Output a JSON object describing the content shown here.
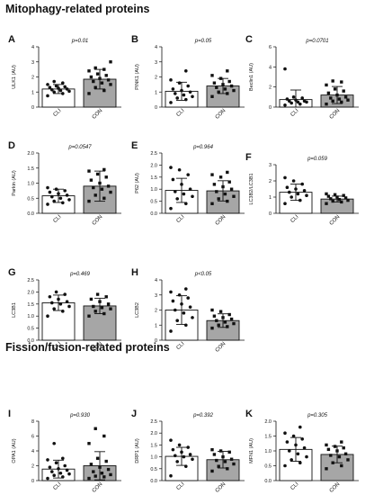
{
  "sections": [
    {
      "title": "Mitophagy-related proteins"
    },
    {
      "title": "Fission/fusion-related proteins"
    }
  ],
  "colors": {
    "cli_bar": "#ffffff",
    "con_bar": "#a6a6a6",
    "axis": "#111111"
  },
  "chart_data": [
    {
      "type": "bar",
      "panel": "A",
      "ylabel": "ULK1 (AU)",
      "pvalue": "p=0.01",
      "categories": [
        "CLI",
        "CON"
      ],
      "ylim": [
        0,
        4
      ],
      "yticks": [
        0,
        1,
        2,
        3,
        4
      ],
      "means": [
        1.2,
        1.85
      ],
      "sd": [
        0.3,
        0.65
      ],
      "points": [
        [
          0.75,
          0.9,
          1.0,
          1.05,
          1.1,
          1.15,
          1.2,
          1.25,
          1.3,
          1.35,
          1.4,
          1.5,
          1.6,
          1.7
        ],
        [
          0.9,
          1.1,
          1.3,
          1.5,
          1.6,
          1.7,
          1.8,
          1.9,
          2.0,
          2.1,
          2.2,
          2.4,
          2.5,
          2.6,
          3.0
        ]
      ]
    },
    {
      "type": "bar",
      "panel": "B",
      "ylabel": "PINK1 (AU)",
      "pvalue": "p=0.05",
      "categories": [
        "CLI",
        "CON"
      ],
      "ylim": [
        0,
        4
      ],
      "yticks": [
        0,
        1,
        2,
        3,
        4
      ],
      "means": [
        1.05,
        1.4
      ],
      "sd": [
        0.6,
        0.5
      ],
      "points": [
        [
          0.3,
          0.5,
          0.6,
          0.7,
          0.8,
          0.9,
          1.0,
          1.1,
          1.2,
          1.4,
          1.6,
          1.8,
          2.4
        ],
        [
          0.7,
          0.9,
          1.0,
          1.1,
          1.2,
          1.3,
          1.4,
          1.5,
          1.6,
          1.7,
          1.9,
          2.1,
          2.4
        ]
      ]
    },
    {
      "type": "bar",
      "panel": "C",
      "ylabel": "Beclin1 (AU)",
      "pvalue": "p=0.0701",
      "categories": [
        "CLI",
        "CON"
      ],
      "ylim": [
        0,
        6
      ],
      "yticks": [
        0,
        2,
        4,
        6
      ],
      "means": [
        0.75,
        1.2
      ],
      "sd": [
        0.95,
        0.85
      ],
      "points": [
        [
          0.2,
          0.3,
          0.4,
          0.5,
          0.5,
          0.6,
          0.6,
          0.7,
          0.8,
          0.9,
          1.0,
          3.8
        ],
        [
          0.3,
          0.5,
          0.6,
          0.7,
          0.8,
          0.9,
          1.0,
          1.2,
          1.4,
          1.6,
          1.8,
          2.2,
          2.5,
          2.6
        ]
      ]
    },
    {
      "type": "bar",
      "panel": "D",
      "ylabel": "Parkin (AU)",
      "pvalue": "p=0.0547",
      "categories": [
        "CLI",
        "CON"
      ],
      "ylim": [
        0,
        2.0
      ],
      "yticks": [
        0.0,
        0.5,
        1.0,
        1.5,
        2.0
      ],
      "means": [
        0.58,
        0.9
      ],
      "sd": [
        0.22,
        0.5
      ],
      "points": [
        [
          0.3,
          0.35,
          0.4,
          0.45,
          0.5,
          0.55,
          0.6,
          0.65,
          0.7,
          0.75,
          0.8,
          0.85
        ],
        [
          0.4,
          0.5,
          0.6,
          0.7,
          0.8,
          0.85,
          0.9,
          1.0,
          1.1,
          1.2,
          1.3,
          1.4,
          1.45
        ]
      ]
    },
    {
      "type": "bar",
      "panel": "E",
      "ylabel": "P62 (AU)",
      "pvalue": "p=0.964",
      "categories": [
        "CLI",
        "CON"
      ],
      "ylim": [
        0,
        2.5
      ],
      "yticks": [
        0.0,
        0.5,
        1.0,
        1.5,
        2.0,
        2.5
      ],
      "means": [
        0.95,
        0.93
      ],
      "sd": [
        0.5,
        0.42
      ],
      "points": [
        [
          0.2,
          0.4,
          0.6,
          0.7,
          0.8,
          0.9,
          1.0,
          1.2,
          1.4,
          1.6,
          1.8,
          1.9
        ],
        [
          0.4,
          0.5,
          0.6,
          0.7,
          0.8,
          0.9,
          1.0,
          1.1,
          1.2,
          1.3,
          1.5,
          1.6,
          1.7
        ]
      ]
    },
    {
      "type": "bar",
      "panel": "F",
      "ylabel": "LC3B2/LC3B1",
      "pvalue": "p=0.059",
      "categories": [
        "CLI",
        "CON"
      ],
      "ylim": [
        0,
        3
      ],
      "yticks": [
        0,
        1,
        2,
        3
      ],
      "means": [
        1.3,
        0.88
      ],
      "sd": [
        0.5,
        0.18
      ],
      "points": [
        [
          0.6,
          0.8,
          1.0,
          1.1,
          1.2,
          1.3,
          1.4,
          1.5,
          1.6,
          1.8,
          2.0,
          2.2
        ],
        [
          0.6,
          0.7,
          0.75,
          0.8,
          0.85,
          0.9,
          0.95,
          1.0,
          1.05,
          1.1,
          1.15,
          1.2
        ]
      ]
    },
    {
      "type": "bar",
      "panel": "G",
      "ylabel": "LC3B1",
      "pvalue": "p=0.469",
      "categories": [
        "CLI",
        "CON"
      ],
      "ylim": [
        0,
        2.5
      ],
      "yticks": [
        0.0,
        0.5,
        1.0,
        1.5,
        2.0,
        2.5
      ],
      "means": [
        1.55,
        1.42
      ],
      "sd": [
        0.32,
        0.32
      ],
      "points": [
        [
          1.0,
          1.2,
          1.3,
          1.4,
          1.5,
          1.55,
          1.6,
          1.7,
          1.8,
          1.9,
          2.0
        ],
        [
          1.0,
          1.1,
          1.2,
          1.3,
          1.35,
          1.4,
          1.5,
          1.6,
          1.7,
          1.8,
          1.9
        ]
      ]
    },
    {
      "type": "bar",
      "panel": "H",
      "ylabel": "LC3B2",
      "pvalue": "p<0.05",
      "categories": [
        "CLI",
        "CON"
      ],
      "ylim": [
        0,
        4
      ],
      "yticks": [
        0,
        1,
        2,
        3,
        4
      ],
      "means": [
        2.0,
        1.3
      ],
      "sd": [
        0.95,
        0.45
      ],
      "points": [
        [
          0.6,
          1.0,
          1.3,
          1.5,
          1.8,
          2.0,
          2.2,
          2.4,
          2.6,
          2.8,
          3.0,
          3.2,
          3.4
        ],
        [
          0.8,
          0.9,
          1.0,
          1.1,
          1.2,
          1.3,
          1.4,
          1.5,
          1.6,
          1.7,
          1.9,
          2.0
        ]
      ]
    },
    {
      "type": "bar",
      "panel": "I",
      "ylabel": "OPA1 (AU)",
      "pvalue": "p=0.930",
      "categories": [
        "CLI",
        "CON"
      ],
      "ylim": [
        0,
        8
      ],
      "yticks": [
        0,
        2,
        4,
        6,
        8
      ],
      "means": [
        1.55,
        2.0
      ],
      "sd": [
        1.2,
        1.9
      ],
      "points": [
        [
          0.3,
          0.5,
          0.7,
          0.9,
          1.0,
          1.2,
          1.4,
          1.6,
          1.8,
          2.0,
          2.4,
          2.8,
          3.0,
          5.0
        ],
        [
          0.3,
          0.5,
          0.6,
          0.8,
          1.0,
          1.2,
          1.5,
          1.8,
          2.2,
          2.6,
          3.0,
          5.0,
          6.0,
          7.0
        ]
      ]
    },
    {
      "type": "bar",
      "panel": "J",
      "ylabel": "DRP1 (AU)",
      "pvalue": "p=0.392",
      "categories": [
        "CLI",
        "CON"
      ],
      "ylim": [
        0,
        2.5
      ],
      "yticks": [
        0.0,
        0.5,
        1.0,
        1.5,
        2.0,
        2.5
      ],
      "means": [
        1.02,
        0.88
      ],
      "sd": [
        0.38,
        0.35
      ],
      "points": [
        [
          0.2,
          0.6,
          0.8,
          0.9,
          1.0,
          1.05,
          1.1,
          1.2,
          1.3,
          1.4,
          1.5,
          1.7
        ],
        [
          0.4,
          0.5,
          0.6,
          0.7,
          0.8,
          0.85,
          0.9,
          1.0,
          1.1,
          1.2,
          1.25,
          1.3
        ]
      ]
    },
    {
      "type": "bar",
      "panel": "K",
      "ylabel": "MFN1 (AU)",
      "pvalue": "p=0.305",
      "categories": [
        "CLI",
        "CON"
      ],
      "ylim": [
        0,
        2.0
      ],
      "yticks": [
        0.0,
        0.5,
        1.0,
        1.5,
        2.0
      ],
      "means": [
        1.05,
        0.88
      ],
      "sd": [
        0.4,
        0.28
      ],
      "points": [
        [
          0.5,
          0.6,
          0.7,
          0.8,
          0.9,
          1.0,
          1.1,
          1.2,
          1.3,
          1.4,
          1.5,
          1.6,
          1.8
        ],
        [
          0.4,
          0.5,
          0.6,
          0.7,
          0.8,
          0.85,
          0.9,
          1.0,
          1.05,
          1.1,
          1.15,
          1.2,
          1.3
        ]
      ]
    }
  ]
}
